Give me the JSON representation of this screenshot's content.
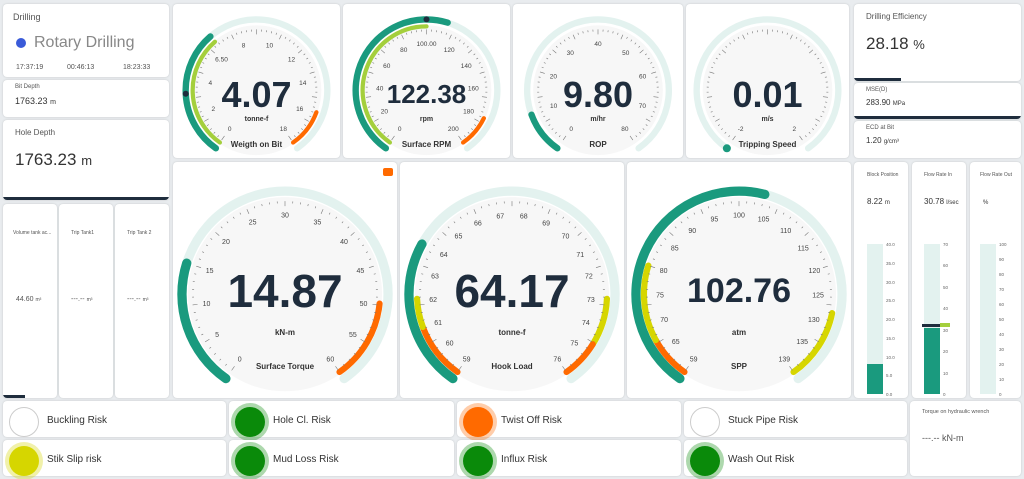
{
  "drilling": {
    "title": "Drilling",
    "mode": "Rotary Drilling",
    "time1": "17:37:19",
    "time2": "00:46:13",
    "time3": "18:23:33",
    "mode_color": "#3a5bd9"
  },
  "bit_depth": {
    "label": "Bit Depth",
    "value": "1763.23",
    "unit": "m"
  },
  "hole_depth": {
    "label": "Hole Depth",
    "value": "1763.23",
    "unit": "m"
  },
  "tanks": [
    {
      "label": "Volume tank ac...",
      "value": "44.60",
      "unit": "m³"
    },
    {
      "label": "Trip Tank1",
      "value": "---.--",
      "unit": "m³"
    },
    {
      "label": "Trip Tank 2",
      "value": "---.--",
      "unit": "m³"
    }
  ],
  "efficiency": {
    "label": "Drilling Efficiency",
    "value": "28.18",
    "unit": "%",
    "fraction": 0.28
  },
  "mse": {
    "label": "MSE(D)",
    "value": "283.90",
    "unit": "MPa"
  },
  "ecd": {
    "label": "ECD at Bit",
    "value": "1.20",
    "unit": "g/cm³"
  },
  "gauges": {
    "wob": {
      "label": "Weigth on Bit",
      "value": "4.07",
      "unit": "tonne-f",
      "ticks": [
        "0",
        "2",
        "4",
        "6.50",
        "8",
        "10",
        "12",
        "14",
        "16",
        "18"
      ]
    },
    "rpm": {
      "label": "Surface RPM",
      "value": "122.38",
      "unit": "rpm",
      "ticks": [
        "0",
        "20",
        "40",
        "60",
        "80",
        "100.00",
        "120",
        "140",
        "160",
        "180",
        "200"
      ]
    },
    "rop": {
      "label": "ROP",
      "value": "9.80",
      "unit": "m/hr",
      "ticks": [
        "0",
        "10",
        "20",
        "30",
        "40",
        "50",
        "60",
        "70",
        "80"
      ]
    },
    "trip": {
      "label": "Tripping Speed",
      "value": "0.01",
      "unit": "m/s",
      "ticks": [
        "-2",
        "2"
      ]
    },
    "torque": {
      "label": "Surface Torque",
      "value": "14.87",
      "unit": "kN-m",
      "ticks": [
        "0",
        "5",
        "10",
        "15",
        "20",
        "25",
        "30",
        "35",
        "40",
        "45",
        "50",
        "55",
        "60"
      ]
    },
    "hook": {
      "label": "Hook Load",
      "value": "64.17",
      "unit": "tonne-f",
      "ticks": [
        "59",
        "60",
        "61",
        "62",
        "63",
        "64",
        "65",
        "66",
        "67",
        "68",
        "69",
        "70",
        "71",
        "72",
        "73",
        "74",
        "75",
        "76"
      ]
    },
    "spp": {
      "label": "SPP",
      "value": "102.76",
      "unit": "atm",
      "ticks": [
        "59",
        "65",
        "70",
        "75",
        "80",
        "85",
        "90",
        "95",
        "100",
        "105",
        "110",
        "115",
        "120",
        "125",
        "130",
        "135",
        "139"
      ]
    }
  },
  "block": {
    "label": "Block Position",
    "value": "8.22",
    "unit": "m",
    "ticks": [
      "40.0",
      "35.0",
      "30.0",
      "25.0",
      "20.0",
      "15.0",
      "10.0",
      "5.0",
      "0.0"
    ],
    "fraction": 0.2
  },
  "flow_in": {
    "label": "Flow Rate In",
    "value": "30.78",
    "unit": "l/sec",
    "ticks": [
      "70",
      "60",
      "50",
      "40",
      "30",
      "20",
      "10",
      "0"
    ],
    "fraction": 0.44
  },
  "flow_out": {
    "label": "Flow Rate Out",
    "value": "",
    "unit": "%",
    "ticks": [
      "100",
      "90",
      "80",
      "70",
      "60",
      "50",
      "40",
      "30",
      "20",
      "10",
      "0"
    ],
    "fraction": 0
  },
  "risks": [
    {
      "label": "Buckling Risk",
      "color": "#ffffff"
    },
    {
      "label": "Hole Cl. Risk",
      "color": "#0a8a0a"
    },
    {
      "label": "Twist Off Risk",
      "color": "#ff6a00"
    },
    {
      "label": "Stuck Pipe Risk",
      "color": "#ffffff"
    },
    {
      "label": "Stik Slip risk",
      "color": "#d6d600"
    },
    {
      "label": "Mud Loss Risk",
      "color": "#0a8a0a"
    },
    {
      "label": "Influx Risk",
      "color": "#0a8a0a"
    },
    {
      "label": "Wash Out Risk",
      "color": "#0a8a0a"
    }
  ],
  "hydraulic": {
    "label": "Torque on hydraulic wrench",
    "value": "---.--",
    "unit": "kN-m"
  }
}
